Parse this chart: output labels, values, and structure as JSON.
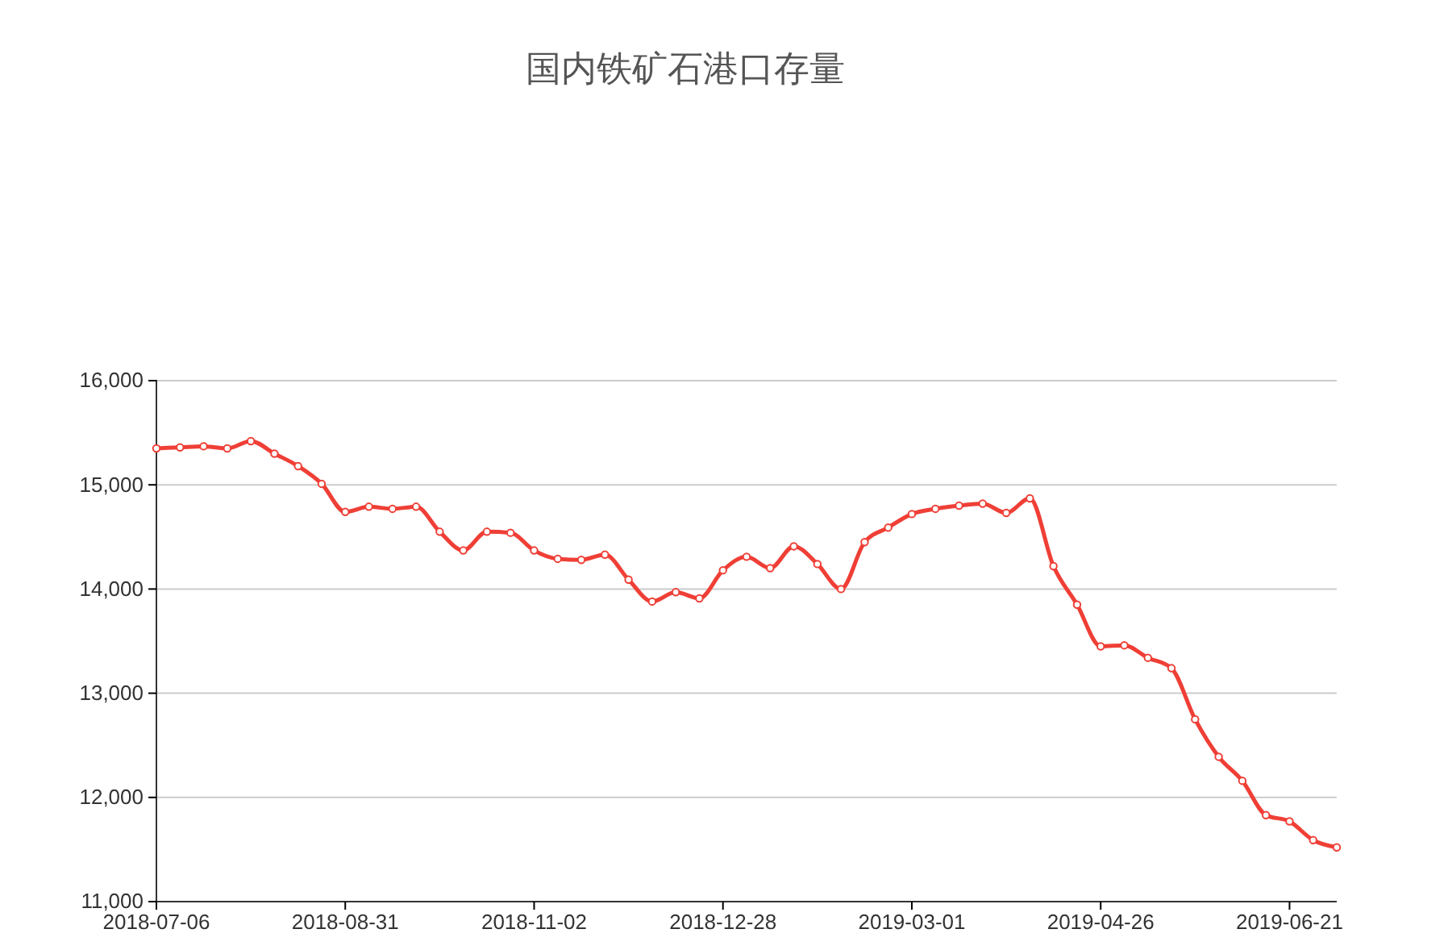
{
  "chart_data": {
    "type": "line",
    "title": "国内铁矿石港口存量",
    "categories": [
      "2018-07-06",
      null,
      null,
      null,
      null,
      null,
      null,
      null,
      "2018-08-31",
      null,
      null,
      null,
      null,
      null,
      null,
      null,
      "2018-11-02",
      null,
      null,
      null,
      null,
      null,
      null,
      null,
      "2018-12-28",
      null,
      null,
      null,
      null,
      null,
      null,
      null,
      "2019-03-01",
      null,
      null,
      null,
      null,
      null,
      null,
      null,
      "2019-04-26",
      null,
      null,
      null,
      null,
      null,
      null,
      null,
      "2019-06-21",
      null,
      null
    ],
    "series": [
      {
        "color": "#ef3f36",
        "values": [
          15350,
          15360,
          15370,
          15350,
          15420,
          15300,
          15180,
          15010,
          14740,
          14790,
          14770,
          14790,
          14550,
          14370,
          14550,
          14540,
          14370,
          14290,
          14280,
          14330,
          14090,
          13880,
          13970,
          13910,
          14180,
          14310,
          14200,
          14410,
          14240,
          14000,
          14450,
          14590,
          14720,
          14770,
          14800,
          14820,
          14730,
          14870,
          14220,
          13850,
          13450,
          13460,
          13340,
          13240,
          12750,
          12390,
          12160,
          11830,
          11770,
          11590,
          11520
        ]
      }
    ],
    "ylim": [
      11000,
      16000
    ],
    "yticks": [
      {
        "value": 11000,
        "label": "11,000"
      },
      {
        "value": 12000,
        "label": "12,000"
      },
      {
        "value": 13000,
        "label": "13,000"
      },
      {
        "value": 14000,
        "label": "14,000"
      },
      {
        "value": 15000,
        "label": "15,000"
      },
      {
        "value": 16000,
        "label": "16,000"
      }
    ],
    "grid": "y",
    "marker": "circle",
    "line_style": "solid"
  }
}
